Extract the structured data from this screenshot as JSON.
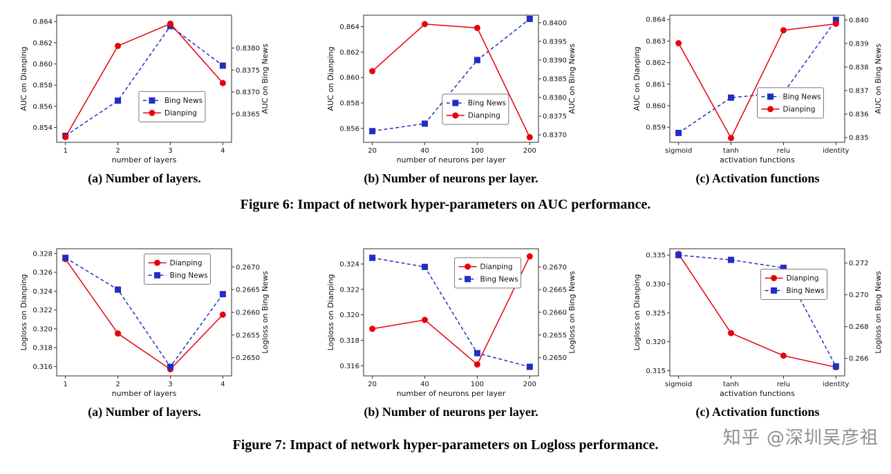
{
  "figures": [
    {
      "caption": "Figure 6: Impact of network hyper-parameters on AUC performance.",
      "subcaptions": [
        "(a) Number of layers.",
        "(b) Number of neurons per layer.",
        "(c) Activation functions"
      ]
    },
    {
      "caption": "Figure 7: Impact of network hyper-parameters on Logloss performance.",
      "subcaptions": [
        "(a) Number of layers.",
        "(b) Number of neurons per layer.",
        "(c) Activation functions"
      ]
    }
  ],
  "watermark": {
    "text": "知乎 @深圳吴彦祖",
    "color": "#8f8f8f"
  },
  "chart_data": [
    {
      "type": "line",
      "title": "",
      "xlabel": "number of layers",
      "categories": [
        "1",
        "2",
        "3",
        "4"
      ],
      "left_axis": {
        "label": "AUC on Dianping",
        "ticks": [
          "0.854",
          "0.856",
          "0.858",
          "0.860",
          "0.862",
          "0.864"
        ],
        "ylim": [
          0.8526,
          0.8646
        ]
      },
      "right_axis": {
        "label": "AUC on Bing News",
        "ticks": [
          "0.8365",
          "0.8370",
          "0.8375",
          "0.8380"
        ],
        "ylim": [
          0.83585,
          0.83875
        ]
      },
      "series": [
        {
          "name": "Bing News",
          "axis": "right",
          "color": "#1f2fc4",
          "marker": "square",
          "line": "dashed",
          "values": [
            0.836,
            0.8368,
            0.8385,
            0.8376
          ]
        },
        {
          "name": "Dianping",
          "axis": "left",
          "color": "#e8000b",
          "marker": "circle",
          "line": "solid",
          "values": [
            0.8531,
            0.8617,
            0.8638,
            0.8582
          ]
        }
      ],
      "legend": {
        "x": 0.47,
        "y": 0.6,
        "order": [
          "Bing News",
          "Dianping"
        ]
      }
    },
    {
      "type": "line",
      "title": "",
      "xlabel": "number of neurons per layer",
      "categories": [
        "20",
        "40",
        "100",
        "200"
      ],
      "left_axis": {
        "label": "AUC on Dianping",
        "ticks": [
          "0.856",
          "0.858",
          "0.860",
          "0.862",
          "0.864"
        ],
        "ylim": [
          0.8549,
          0.8649
        ]
      },
      "right_axis": {
        "label": "AUC on Bing News",
        "ticks": [
          "0.8370",
          "0.8375",
          "0.8380",
          "0.8385",
          "0.8390",
          "0.8395",
          "0.8400"
        ],
        "ylim": [
          0.8368,
          0.8402
        ]
      },
      "series": [
        {
          "name": "Bing News",
          "axis": "right",
          "color": "#1f2fc4",
          "marker": "square",
          "line": "dashed",
          "values": [
            0.8371,
            0.8373,
            0.839,
            0.8401
          ]
        },
        {
          "name": "Dianping",
          "axis": "left",
          "color": "#e8000b",
          "marker": "circle",
          "line": "solid",
          "values": [
            0.8605,
            0.8642,
            0.8639,
            0.8553
          ]
        }
      ],
      "legend": {
        "x": 0.45,
        "y": 0.62,
        "order": [
          "Bing News",
          "Dianping"
        ]
      }
    },
    {
      "type": "line",
      "title": "",
      "xlabel": "activation functions",
      "categories": [
        "sigmoid",
        "tanh",
        "relu",
        "identity"
      ],
      "left_axis": {
        "label": "AUC on Dianping",
        "ticks": [
          "0.859",
          "0.860",
          "0.861",
          "0.862",
          "0.863",
          "0.864"
        ],
        "ylim": [
          0.8583,
          0.8642
        ]
      },
      "right_axis": {
        "label": "AUC on Bing News",
        "ticks": [
          "0.835",
          "0.836",
          "0.837",
          "0.838",
          "0.839",
          "0.840"
        ],
        "ylim": [
          0.8348,
          0.8402
        ]
      },
      "series": [
        {
          "name": "Bing News",
          "axis": "right",
          "color": "#1f2fc4",
          "marker": "square",
          "line": "dashed",
          "values": [
            0.8352,
            0.8367,
            0.8369,
            0.84
          ]
        },
        {
          "name": "Dianping",
          "axis": "left",
          "color": "#e8000b",
          "marker": "circle",
          "line": "solid",
          "values": [
            0.8629,
            0.8585,
            0.8635,
            0.8638
          ]
        }
      ],
      "legend": {
        "x": 0.5,
        "y": 0.57,
        "order": [
          "Bing News",
          "Dianping"
        ]
      }
    },
    {
      "type": "line",
      "title": "",
      "xlabel": "number of layers",
      "categories": [
        "1",
        "2",
        "3",
        "4"
      ],
      "left_axis": {
        "label": "Logloss on Dianping",
        "ticks": [
          "0.316",
          "0.318",
          "0.320",
          "0.322",
          "0.324",
          "0.326",
          "0.328"
        ],
        "ylim": [
          0.315,
          0.3285
        ]
      },
      "right_axis": {
        "label": "Logloss on Bing News",
        "ticks": [
          "0.2650",
          "0.2655",
          "0.2660",
          "0.2665",
          "0.2670"
        ],
        "ylim": [
          0.2646,
          0.2674
        ]
      },
      "series": [
        {
          "name": "Dianping",
          "axis": "left",
          "color": "#e8000b",
          "marker": "circle",
          "line": "solid",
          "values": [
            0.3274,
            0.3195,
            0.3157,
            0.3215
          ]
        },
        {
          "name": "Bing News",
          "axis": "right",
          "color": "#1f2fc4",
          "marker": "square",
          "line": "dashed",
          "values": [
            0.2672,
            0.2665,
            0.2648,
            0.2664
          ]
        }
      ],
      "legend": {
        "x": 0.5,
        "y": 0.04,
        "order": [
          "Dianping",
          "Bing News"
        ]
      }
    },
    {
      "type": "line",
      "title": "",
      "xlabel": "number of neurons per layer",
      "categories": [
        "20",
        "40",
        "100",
        "200"
      ],
      "left_axis": {
        "label": "Logloss on Dianping",
        "ticks": [
          "0.316",
          "0.318",
          "0.320",
          "0.322",
          "0.324"
        ],
        "ylim": [
          0.3152,
          0.3252
        ]
      },
      "right_axis": {
        "label": "Logloss on Bing News",
        "ticks": [
          "0.2650",
          "0.2655",
          "0.2660",
          "0.2665",
          "0.2670"
        ],
        "ylim": [
          0.2646,
          0.2674
        ]
      },
      "series": [
        {
          "name": "Dianping",
          "axis": "left",
          "color": "#e8000b",
          "marker": "circle",
          "line": "solid",
          "values": [
            0.3189,
            0.3196,
            0.3161,
            0.3246
          ]
        },
        {
          "name": "Bing News",
          "axis": "right",
          "color": "#1f2fc4",
          "marker": "square",
          "line": "dashed",
          "values": [
            0.2672,
            0.267,
            0.2651,
            0.2648
          ]
        }
      ],
      "legend": {
        "x": 0.52,
        "y": 0.07,
        "order": [
          "Dianping",
          "Bing News"
        ]
      }
    },
    {
      "type": "line",
      "title": "",
      "xlabel": "activation functions",
      "categories": [
        "sigmoid",
        "tanh",
        "relu",
        "identity"
      ],
      "left_axis": {
        "label": "Logloss on Dianping",
        "ticks": [
          "0.315",
          "0.320",
          "0.325",
          "0.330",
          "0.335"
        ],
        "ylim": [
          0.3141,
          0.3361
        ]
      },
      "right_axis": {
        "label": "Logloss on Bing News",
        "ticks": [
          "0.266",
          "0.268",
          "0.270",
          "0.272"
        ],
        "ylim": [
          0.2649,
          0.2729
        ]
      },
      "series": [
        {
          "name": "Dianping",
          "axis": "left",
          "color": "#e8000b",
          "marker": "circle",
          "line": "solid",
          "values": [
            0.3352,
            0.3215,
            0.3176,
            0.3156
          ]
        },
        {
          "name": "Bing News",
          "axis": "right",
          "color": "#1f2fc4",
          "marker": "square",
          "line": "dashed",
          "values": [
            0.2725,
            0.2722,
            0.2717,
            0.2655
          ]
        }
      ],
      "legend": {
        "x": 0.52,
        "y": 0.16,
        "order": [
          "Dianping",
          "Bing News"
        ]
      }
    }
  ]
}
